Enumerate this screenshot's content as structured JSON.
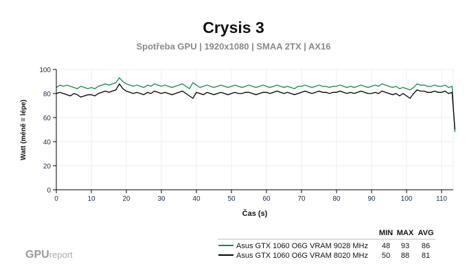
{
  "chart_data": {
    "type": "line",
    "title": "Crysis 3",
    "subtitle": "Spotřeba GPU | 1920x1080 | SMAA 2TX | AX16",
    "xlabel": "Čas (s)",
    "ylabel": "Watt (méně = lépe)",
    "xlim": [
      0,
      114
    ],
    "ylim": [
      0,
      100
    ],
    "xticks": [
      0,
      10,
      20,
      30,
      40,
      50,
      60,
      70,
      80,
      90,
      100,
      110
    ],
    "yticks": [
      0,
      20,
      40,
      60,
      80,
      100
    ],
    "grid": true,
    "legend_position": "bottom-right",
    "legend_headers": [
      "MIN",
      "MAX",
      "AVG"
    ],
    "x": [
      0,
      1,
      2,
      3,
      4,
      5,
      6,
      7,
      8,
      9,
      10,
      11,
      12,
      13,
      14,
      15,
      16,
      17,
      18,
      19,
      20,
      21,
      22,
      23,
      24,
      25,
      26,
      27,
      28,
      29,
      30,
      31,
      32,
      33,
      34,
      35,
      36,
      37,
      38,
      39,
      40,
      41,
      42,
      43,
      44,
      45,
      46,
      47,
      48,
      49,
      50,
      51,
      52,
      53,
      54,
      55,
      56,
      57,
      58,
      59,
      60,
      61,
      62,
      63,
      64,
      65,
      66,
      67,
      68,
      69,
      70,
      71,
      72,
      73,
      74,
      75,
      76,
      77,
      78,
      79,
      80,
      81,
      82,
      83,
      84,
      85,
      86,
      87,
      88,
      89,
      90,
      91,
      92,
      93,
      94,
      95,
      96,
      97,
      98,
      99,
      100,
      101,
      102,
      103,
      104,
      105,
      106,
      107,
      108,
      109,
      110,
      111,
      112,
      113,
      113.8
    ],
    "series": [
      {
        "name": "Asus GTX 1060 O6G VRAM 9028 MHz",
        "color": "#128a4c",
        "min": "48",
        "max": "93",
        "avg": "86",
        "values": [
          85,
          87,
          86,
          87,
          86,
          85,
          84,
          86,
          85,
          84,
          85,
          84,
          86,
          87,
          88,
          87,
          88,
          89,
          93,
          90,
          88,
          87,
          86,
          87,
          86,
          85,
          87,
          86,
          88,
          87,
          86,
          87,
          86,
          85,
          86,
          87,
          88,
          86,
          84,
          89,
          87,
          85,
          86,
          87,
          86,
          85,
          86,
          87,
          86,
          85,
          86,
          87,
          86,
          85,
          86,
          87,
          86,
          85,
          86,
          87,
          86,
          85,
          86,
          87,
          86,
          85,
          86,
          85,
          84,
          86,
          86,
          87,
          86,
          85,
          86,
          87,
          86,
          86,
          85,
          86,
          86,
          87,
          86,
          85,
          86,
          85,
          86,
          87,
          86,
          85,
          86,
          87,
          86,
          88,
          87,
          86,
          85,
          86,
          84,
          85,
          84,
          83,
          85,
          88,
          87,
          87,
          86,
          86,
          87,
          86,
          86,
          87,
          85,
          86,
          48
        ]
      },
      {
        "name": "Asus GTX 1060 O6G VRAM 8020 MHz",
        "color": "#000000",
        "min": "50",
        "max": "88",
        "avg": "81",
        "values": [
          80,
          81,
          80,
          79,
          78,
          80,
          79,
          77,
          78,
          79,
          79,
          78,
          80,
          81,
          82,
          81,
          82,
          83,
          88,
          84,
          82,
          81,
          80,
          81,
          80,
          79,
          81,
          80,
          82,
          81,
          80,
          81,
          80,
          79,
          80,
          81,
          82,
          80,
          78,
          76,
          81,
          80,
          79,
          81,
          80,
          79,
          80,
          81,
          80,
          79,
          80,
          81,
          80,
          80,
          81,
          81,
          80,
          79,
          80,
          81,
          81,
          80,
          81,
          82,
          81,
          80,
          81,
          80,
          79,
          80,
          81,
          82,
          81,
          80,
          81,
          82,
          81,
          81,
          80,
          81,
          81,
          82,
          81,
          80,
          81,
          80,
          81,
          82,
          81,
          80,
          80,
          81,
          80,
          82,
          81,
          80,
          79,
          80,
          78,
          80,
          78,
          76,
          80,
          83,
          82,
          82,
          81,
          81,
          82,
          81,
          81,
          82,
          80,
          81,
          50
        ]
      }
    ]
  },
  "logo": {
    "main": "GPU",
    "suffix": "report"
  }
}
